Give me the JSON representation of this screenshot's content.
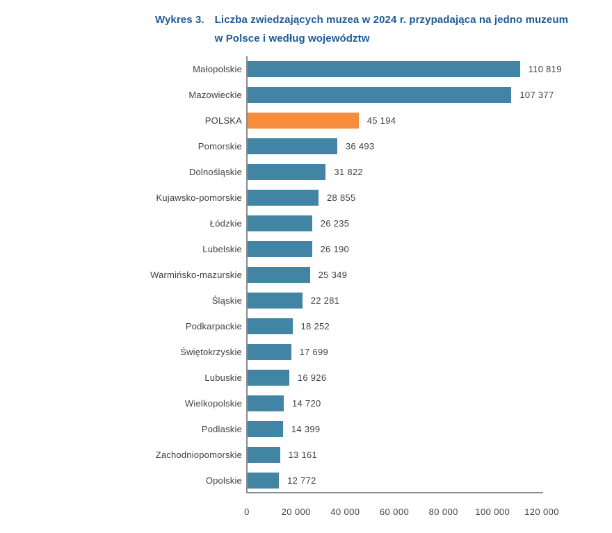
{
  "title": {
    "prefix": "Wykres 3.",
    "line1": "Liczba zwiedzających muzea w 2024 r. przypadająca na jedno muzeum",
    "line2": "w Polsce i według województw"
  },
  "colors": {
    "bar": "#4184a3",
    "highlight": "#f68d3d",
    "title": "#1e5a96",
    "text": "#3f3f3f",
    "axis": "#8c8c8c"
  },
  "chart_data": {
    "type": "bar",
    "orientation": "horizontal",
    "title": "Wykres 3. Liczba zwiedzających muzea w 2024 r. przypadająca na jedno muzeum w Polsce i według województw",
    "xlabel": "",
    "ylabel": "",
    "xlim": [
      0,
      120000
    ],
    "grid": false,
    "legend": false,
    "highlight_category": "POLSKA",
    "categories": [
      "Małopolskie",
      "Mazowieckie",
      "POLSKA",
      "Pomorskie",
      "Dolnośląskie",
      "Kujawsko-pomorskie",
      "Łódzkie",
      "Lubelskie",
      "Warmińsko-mazurskie",
      "Śląskie",
      "Podkarpackie",
      "Świętokrzyskie",
      "Lubuskie",
      "Wielkopolskie",
      "Podlaskie",
      "Zachodniopomorskie",
      "Opolskie"
    ],
    "values": [
      110819,
      107377,
      45194,
      36493,
      31822,
      28855,
      26235,
      26190,
      25349,
      22281,
      18252,
      17699,
      16926,
      14720,
      14399,
      13161,
      12772
    ],
    "value_labels": [
      "110 819",
      "107 377",
      "45 194",
      "36 493",
      "31 822",
      "28 855",
      "26 235",
      "26 190",
      "25 349",
      "22 281",
      "18 252",
      "17 699",
      "16 926",
      "14 720",
      "14 399",
      "13 161",
      "12 772"
    ],
    "x_ticks": [
      "0",
      "20 000",
      "40 000",
      "60 000",
      "80 000",
      "100 000",
      "120 000"
    ],
    "x_tick_values": [
      0,
      20000,
      40000,
      60000,
      80000,
      100000,
      120000
    ]
  }
}
